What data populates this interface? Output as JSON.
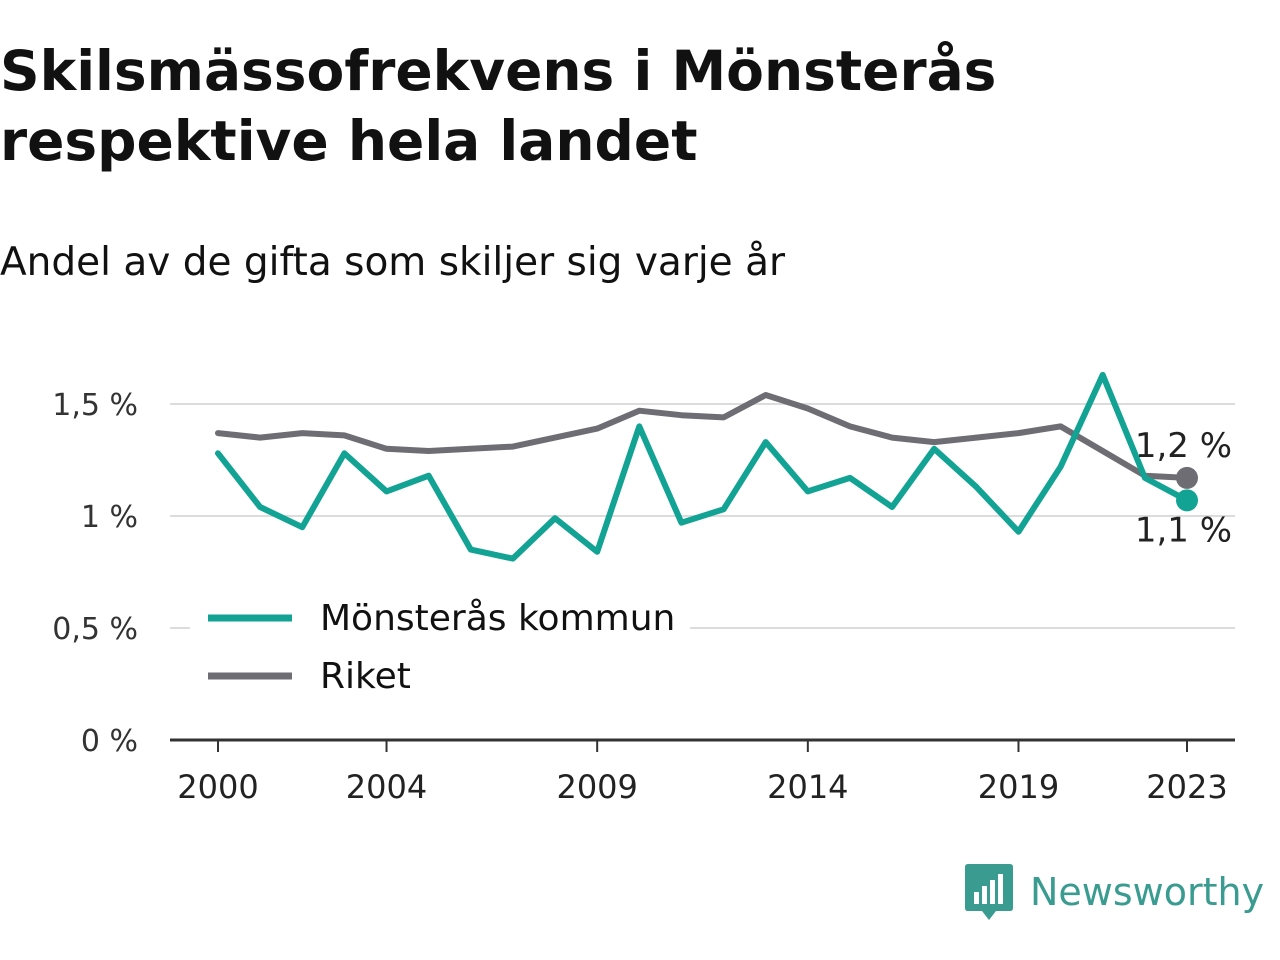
{
  "title": "Skilsmässofrekvens i Mönsterås respektive hela landet",
  "subtitle": "Andel av de gifta som skiljer sig varje år",
  "brand": {
    "name": "Newsworthy",
    "icon": "newsworthy-logo-icon",
    "color": "#3a9c90"
  },
  "chart_data": {
    "type": "line",
    "title": "Skilsmässofrekvens i Mönsterås respektive hela landet",
    "subtitle": "Andel av de gifta som skiljer sig varje år",
    "x": [
      2000,
      2001,
      2002,
      2003,
      2004,
      2005,
      2006,
      2007,
      2008,
      2009,
      2010,
      2011,
      2012,
      2013,
      2014,
      2015,
      2016,
      2017,
      2018,
      2019,
      2020,
      2021,
      2022,
      2023
    ],
    "xlim": [
      1999,
      2024
    ],
    "x_ticks": [
      2000,
      2004,
      2009,
      2014,
      2019,
      2023
    ],
    "x_tick_labels": [
      "2000",
      "2004",
      "2009",
      "2014",
      "2019",
      "2023"
    ],
    "ylim": [
      0,
      1.65
    ],
    "y_ticks": [
      0,
      0.5,
      1,
      1.5
    ],
    "y_tick_labels": [
      "0 %",
      "0,5 %",
      "1 %",
      "1,5 %"
    ],
    "grid": true,
    "legend": "bottom-left",
    "series": [
      {
        "name": "Mönsterås kommun",
        "color": "#12a394",
        "values": [
          1.28,
          1.04,
          0.95,
          1.28,
          1.11,
          1.18,
          0.85,
          0.81,
          0.99,
          0.84,
          1.4,
          0.97,
          1.03,
          1.33,
          1.11,
          1.17,
          1.04,
          1.3,
          1.13,
          0.93,
          1.22,
          1.63,
          1.17,
          1.07
        ],
        "end_label": "1,1 %"
      },
      {
        "name": "Riket",
        "color": "#6e6d73",
        "values": [
          1.37,
          1.35,
          1.37,
          1.36,
          1.3,
          1.29,
          1.3,
          1.31,
          1.35,
          1.39,
          1.47,
          1.45,
          1.44,
          1.54,
          1.48,
          1.4,
          1.35,
          1.33,
          1.35,
          1.37,
          1.4,
          1.29,
          1.18,
          1.17
        ],
        "end_label": "1,2 %"
      }
    ]
  }
}
